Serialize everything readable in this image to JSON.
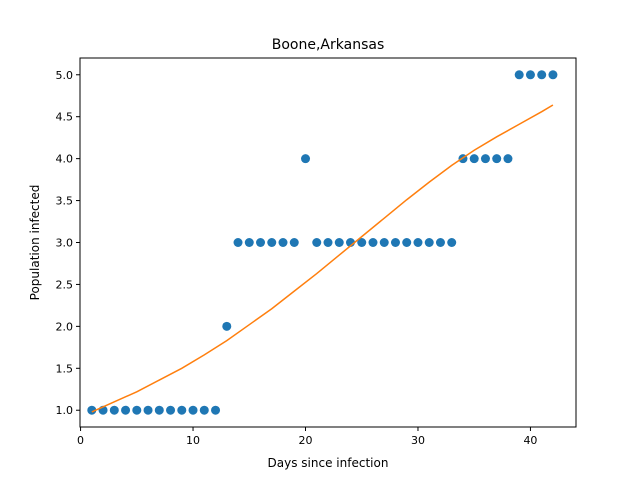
{
  "chart_data": {
    "type": "scatter",
    "title": "Boone,Arkansas",
    "xlabel": "Days since infection",
    "ylabel": "Population infected",
    "xlim": [
      -0.05,
      44.05
    ],
    "ylim": [
      0.8,
      5.2
    ],
    "xticks": [
      0,
      10,
      20,
      30,
      40
    ],
    "yticks": [
      1.0,
      1.5,
      2.0,
      2.5,
      3.0,
      3.5,
      4.0,
      4.5,
      5.0
    ],
    "xtick_labels": [
      "0",
      "10",
      "20",
      "30",
      "40"
    ],
    "ytick_labels": [
      "1.0",
      "1.5",
      "2.0",
      "2.5",
      "3.0",
      "3.5",
      "4.0",
      "4.5",
      "5.0"
    ],
    "grid": false,
    "series": [
      {
        "kind": "scatter",
        "color": "#1f77b4",
        "x": [
          1,
          2,
          3,
          4,
          5,
          6,
          7,
          8,
          9,
          10,
          11,
          12,
          13,
          14,
          15,
          16,
          17,
          18,
          19,
          20,
          21,
          22,
          23,
          24,
          25,
          26,
          27,
          28,
          29,
          30,
          31,
          32,
          33,
          34,
          35,
          36,
          37,
          38,
          39,
          40,
          41,
          42
        ],
        "y": [
          1,
          1,
          1,
          1,
          1,
          1,
          1,
          1,
          1,
          1,
          1,
          1,
          2,
          3,
          3,
          3,
          3,
          3,
          3,
          4,
          3,
          3,
          3,
          3,
          3,
          3,
          3,
          3,
          3,
          3,
          3,
          3,
          3,
          4,
          4,
          4,
          4,
          4,
          5,
          5,
          5,
          5
        ]
      },
      {
        "kind": "line",
        "color": "#ff7f0e",
        "x": [
          1,
          3,
          5,
          7,
          9,
          11,
          13,
          15,
          17,
          19,
          21,
          23,
          25,
          27,
          29,
          31,
          33,
          35,
          37,
          39,
          41,
          42
        ],
        "y": [
          0.98,
          1.1,
          1.22,
          1.36,
          1.5,
          1.66,
          1.83,
          2.02,
          2.21,
          2.42,
          2.63,
          2.85,
          3.07,
          3.29,
          3.51,
          3.72,
          3.92,
          4.1,
          4.26,
          4.41,
          4.56,
          4.64
        ]
      }
    ]
  }
}
